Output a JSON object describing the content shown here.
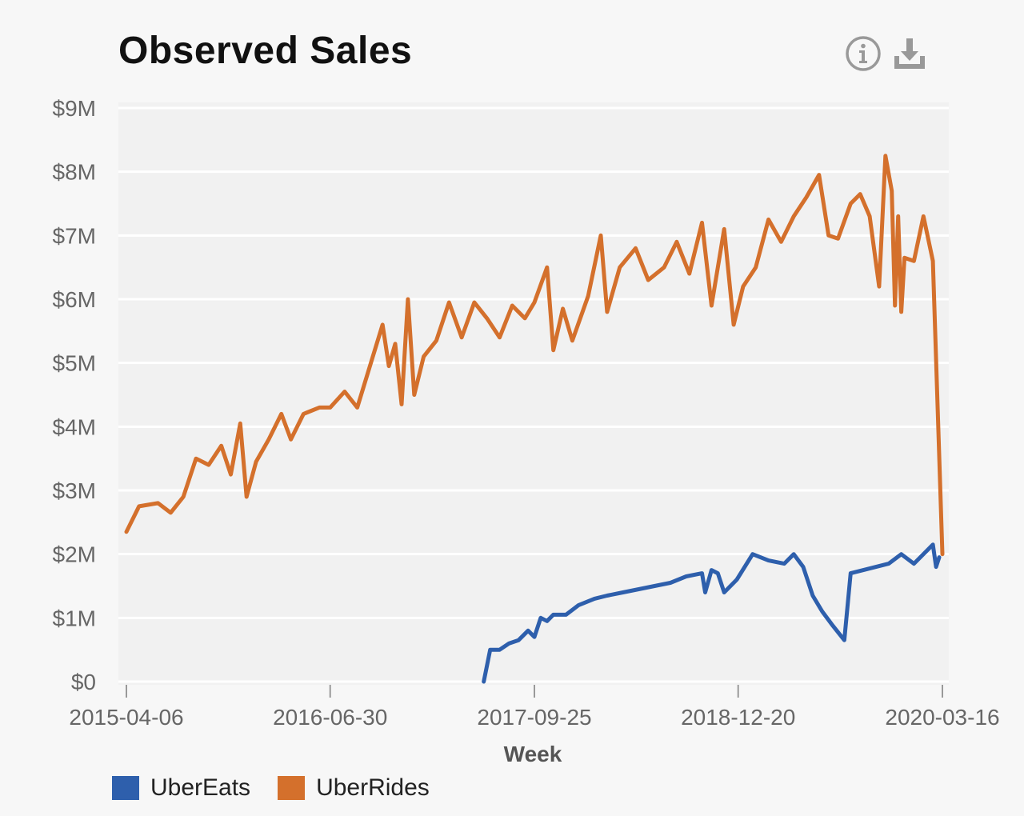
{
  "title": "Observed Sales",
  "icons": {
    "info": "info-icon",
    "download": "download-icon"
  },
  "chart_data": {
    "type": "line",
    "title": "Observed Sales",
    "xlabel": "Week",
    "ylabel": "",
    "x_range": [
      "2015-04-06",
      "2020-03-16"
    ],
    "xticks": [
      "2015-04-06",
      "2016-06-30",
      "2017-09-25",
      "2018-12-20",
      "2020-03-16"
    ],
    "ylim": [
      0,
      9000000
    ],
    "yticks": [
      0,
      1000000,
      2000000,
      3000000,
      4000000,
      5000000,
      6000000,
      7000000,
      8000000,
      9000000
    ],
    "ytick_labels": [
      "$0",
      "$1M",
      "$2M",
      "$3M",
      "$4M",
      "$5M",
      "$6M",
      "$7M",
      "$8M",
      "$9M"
    ],
    "grid": true,
    "legend_position": "bottom-left",
    "series": [
      {
        "name": "UberEats",
        "color": "#2e5fac",
        "points": [
          [
            "2017-06-05",
            0.0
          ],
          [
            "2017-06-19",
            0.5
          ],
          [
            "2017-07-10",
            0.5
          ],
          [
            "2017-07-31",
            0.6
          ],
          [
            "2017-08-21",
            0.65
          ],
          [
            "2017-09-11",
            0.8
          ],
          [
            "2017-09-25",
            0.7
          ],
          [
            "2017-10-09",
            1.0
          ],
          [
            "2017-10-23",
            0.95
          ],
          [
            "2017-11-06",
            1.05
          ],
          [
            "2017-12-04",
            1.05
          ],
          [
            "2018-01-01",
            1.2
          ],
          [
            "2018-02-05",
            1.3
          ],
          [
            "2018-03-05",
            1.35
          ],
          [
            "2018-04-09",
            1.4
          ],
          [
            "2018-05-14",
            1.45
          ],
          [
            "2018-06-18",
            1.5
          ],
          [
            "2018-07-23",
            1.55
          ],
          [
            "2018-08-27",
            1.65
          ],
          [
            "2018-10-01",
            1.7
          ],
          [
            "2018-10-08",
            1.4
          ],
          [
            "2018-10-22",
            1.75
          ],
          [
            "2018-11-05",
            1.7
          ],
          [
            "2018-11-19",
            1.4
          ],
          [
            "2018-12-17",
            1.6
          ],
          [
            "2019-01-21",
            2.0
          ],
          [
            "2019-02-25",
            1.9
          ],
          [
            "2019-04-01",
            1.85
          ],
          [
            "2019-04-22",
            2.0
          ],
          [
            "2019-05-13",
            1.8
          ],
          [
            "2019-06-03",
            1.35
          ],
          [
            "2019-06-24",
            1.1
          ],
          [
            "2019-07-15",
            0.9
          ],
          [
            "2019-08-12",
            0.65
          ],
          [
            "2019-08-26",
            1.7
          ],
          [
            "2019-09-23",
            1.75
          ],
          [
            "2019-10-21",
            1.8
          ],
          [
            "2019-11-18",
            1.85
          ],
          [
            "2019-12-16",
            2.0
          ],
          [
            "2020-01-13",
            1.85
          ],
          [
            "2020-02-10",
            2.05
          ],
          [
            "2020-02-24",
            2.15
          ],
          [
            "2020-03-02",
            1.8
          ],
          [
            "2020-03-09",
            1.95
          ]
        ]
      },
      {
        "name": "UberRides",
        "color": "#d4702c",
        "points": [
          [
            "2015-04-06",
            2.35
          ],
          [
            "2015-05-04",
            2.75
          ],
          [
            "2015-06-15",
            2.8
          ],
          [
            "2015-07-13",
            2.65
          ],
          [
            "2015-08-10",
            2.9
          ],
          [
            "2015-09-07",
            3.5
          ],
          [
            "2015-10-05",
            3.4
          ],
          [
            "2015-11-02",
            3.7
          ],
          [
            "2015-11-23",
            3.25
          ],
          [
            "2015-12-14",
            4.05
          ],
          [
            "2015-12-28",
            2.9
          ],
          [
            "2016-01-18",
            3.45
          ],
          [
            "2016-02-15",
            3.8
          ],
          [
            "2016-03-14",
            4.2
          ],
          [
            "2016-04-04",
            3.8
          ],
          [
            "2016-05-02",
            4.2
          ],
          [
            "2016-06-06",
            4.3
          ],
          [
            "2016-06-30",
            4.3
          ],
          [
            "2016-08-01",
            4.55
          ],
          [
            "2016-08-29",
            4.3
          ],
          [
            "2016-09-26",
            4.95
          ],
          [
            "2016-10-24",
            5.6
          ],
          [
            "2016-11-07",
            4.95
          ],
          [
            "2016-11-21",
            5.3
          ],
          [
            "2016-12-05",
            4.35
          ],
          [
            "2016-12-19",
            6.0
          ],
          [
            "2017-01-02",
            4.5
          ],
          [
            "2017-01-23",
            5.1
          ],
          [
            "2017-02-20",
            5.35
          ],
          [
            "2017-03-20",
            5.95
          ],
          [
            "2017-04-17",
            5.4
          ],
          [
            "2017-05-15",
            5.95
          ],
          [
            "2017-06-12",
            5.7
          ],
          [
            "2017-07-10",
            5.4
          ],
          [
            "2017-08-07",
            5.9
          ],
          [
            "2017-09-04",
            5.7
          ],
          [
            "2017-09-25",
            5.95
          ],
          [
            "2017-10-23",
            6.5
          ],
          [
            "2017-11-06",
            5.2
          ],
          [
            "2017-11-27",
            5.85
          ],
          [
            "2017-12-18",
            5.35
          ],
          [
            "2018-01-22",
            6.05
          ],
          [
            "2018-02-19",
            7.0
          ],
          [
            "2018-03-05",
            5.8
          ],
          [
            "2018-04-02",
            6.5
          ],
          [
            "2018-05-07",
            6.8
          ],
          [
            "2018-06-04",
            6.3
          ],
          [
            "2018-07-09",
            6.5
          ],
          [
            "2018-08-06",
            6.9
          ],
          [
            "2018-09-03",
            6.4
          ],
          [
            "2018-10-01",
            7.2
          ],
          [
            "2018-10-22",
            5.9
          ],
          [
            "2018-11-19",
            7.1
          ],
          [
            "2018-12-10",
            5.6
          ],
          [
            "2018-12-31",
            6.2
          ],
          [
            "2019-01-28",
            6.5
          ],
          [
            "2019-02-25",
            7.25
          ],
          [
            "2019-03-25",
            6.9
          ],
          [
            "2019-04-22",
            7.3
          ],
          [
            "2019-05-20",
            7.6
          ],
          [
            "2019-06-17",
            7.95
          ],
          [
            "2019-07-08",
            7.0
          ],
          [
            "2019-07-29",
            6.95
          ],
          [
            "2019-08-26",
            7.5
          ],
          [
            "2019-09-16",
            7.65
          ],
          [
            "2019-10-07",
            7.3
          ],
          [
            "2019-10-28",
            6.2
          ],
          [
            "2019-11-11",
            8.25
          ],
          [
            "2019-11-25",
            7.7
          ],
          [
            "2019-12-02",
            5.9
          ],
          [
            "2019-12-09",
            7.3
          ],
          [
            "2019-12-16",
            5.8
          ],
          [
            "2019-12-23",
            6.65
          ],
          [
            "2020-01-13",
            6.6
          ],
          [
            "2020-02-03",
            7.3
          ],
          [
            "2020-02-24",
            6.6
          ],
          [
            "2020-03-16",
            2.0
          ]
        ]
      }
    ]
  }
}
